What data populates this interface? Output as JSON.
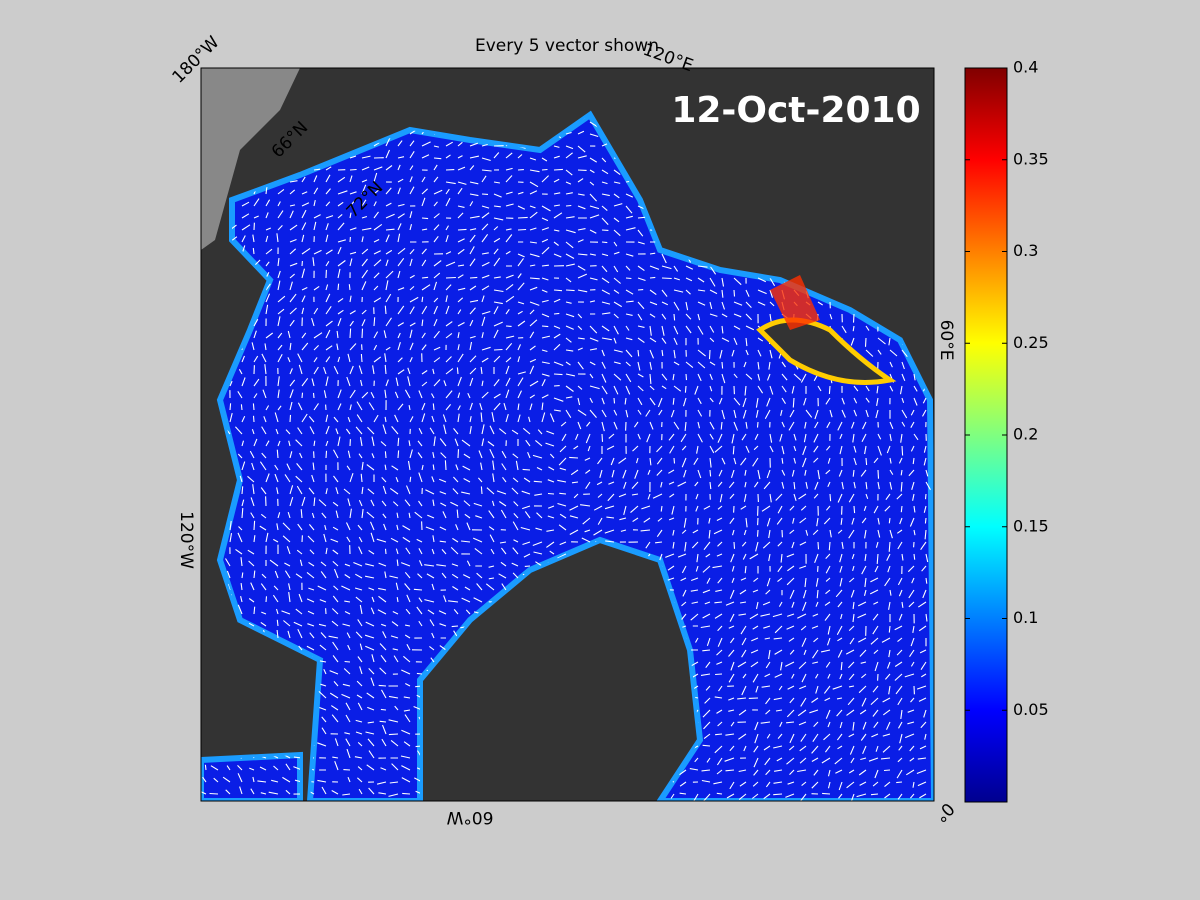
{
  "title": "Every 5 vector shown",
  "date": "12-Oct-2010",
  "lon_labels": [
    "180°W",
    "120°E",
    "60°E",
    "0°",
    "60°W",
    "120°W"
  ],
  "lat_labels": [
    "66°N",
    "72°N"
  ],
  "colorbar": {
    "lim": [
      0,
      0.4
    ],
    "ticks": [
      0.05,
      0.1,
      0.15,
      0.2,
      0.25,
      0.3,
      0.35,
      0.4
    ]
  }
}
